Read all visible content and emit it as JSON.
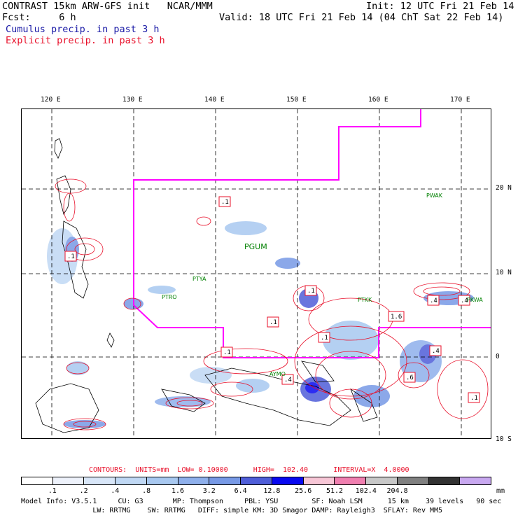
{
  "header": {
    "title": "CONTRAST 15km ARW-GFS init   NCAR/MMM",
    "init": "Init: 12 UTC Fri 21 Feb 14",
    "fcst": "Fcst:     6 h",
    "valid": "Valid: 18 UTC Fri 21 Feb 14 (04 ChT Sat 22 Feb 14)",
    "legend_cumulus": "Cumulus precip. in past 3 h",
    "legend_explicit": "Explicit precip. in past 3 h"
  },
  "map": {
    "lon_labels": [
      "120 E",
      "130 E",
      "140 E",
      "150 E",
      "160 E",
      "170 E"
    ],
    "lat_labels": [
      "20 N",
      "10 N",
      "0",
      "10 S"
    ],
    "stations": [
      "PWAK",
      "PGUM",
      "PTYA",
      "PTRO",
      "PTKK",
      "PKWA",
      "AYMO"
    ],
    "contour_labels": [
      ".1",
      ".1",
      ".1",
      ".1",
      ".1",
      ".1",
      "1.6",
      ".4",
      ".4",
      ".4",
      ".4",
      ".6",
      ".1"
    ],
    "colors": {
      "frame": "#000000",
      "coast": "#000000",
      "grid": "#000000",
      "domain_boundary": "#ff00ff",
      "explicit_contour": "#e8102a",
      "station_text": "#008000"
    }
  },
  "contours_line": "CONTOURS:  UNITS=mm  LOW= 0.10000      HIGH=  102.40      INTERVAL=X  4.0000",
  "colorbar": {
    "colors": [
      "#ffffff",
      "#eef2fb",
      "#d8e6f8",
      "#c0d8f4",
      "#a8c8f0",
      "#8fb0ec",
      "#7799e6",
      "#4f5ed9",
      "#0808f0",
      "#f7c6d6",
      "#f07fb0",
      "#c8c8c8",
      "#808080",
      "#333333",
      "#c8a8f0"
    ],
    "labels": [
      ".1",
      ".2",
      ".4",
      ".8",
      "1.6",
      "3.2",
      "6.4",
      "12.8",
      "25.6",
      "51.2",
      "102.4",
      "204.8"
    ],
    "unit": "mm"
  },
  "footer": {
    "line1": "Model Info: V3.5.1     CU: G3       MP: Thompson     PBL: YSU        SF: Noah LSM      15 km    39 levels   90 sec",
    "line2": "                 LW: RRTMG    SW: RRTMG   DIFF: simple KM: 3D Smagor DAMP: Rayleigh3  SFLAY: Rev MM5"
  }
}
